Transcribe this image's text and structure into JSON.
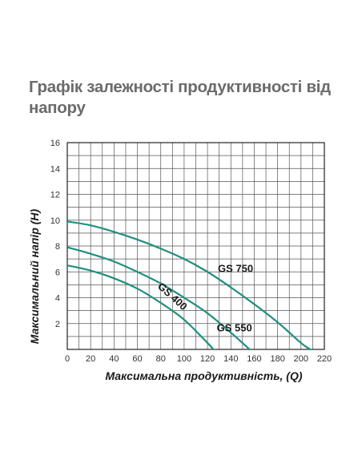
{
  "page": {
    "title": "Графік залежності продуктивності від напору"
  },
  "chart_data": {
    "type": "line",
    "title": "Графік залежності продуктивності від напору",
    "xlabel": "Максимальна продуктивність, (Q)",
    "ylabel": "Максимальний напір (H)",
    "xlim": [
      0,
      220
    ],
    "ylim": [
      0,
      16
    ],
    "xticks": [
      0,
      20,
      40,
      60,
      80,
      100,
      120,
      140,
      160,
      180,
      200,
      220
    ],
    "yticks": [
      2,
      4,
      6,
      8,
      10,
      12,
      14,
      16
    ],
    "grid": true,
    "legend": "none",
    "line_color": "#1f8f80",
    "series": [
      {
        "name": "GS 750",
        "x": [
          0,
          20,
          40,
          60,
          80,
          100,
          120,
          140,
          160,
          180,
          200,
          208
        ],
        "y": [
          9.9,
          9.6,
          9.1,
          8.5,
          7.8,
          7.0,
          6.0,
          4.8,
          3.5,
          2.1,
          0.5,
          0
        ]
      },
      {
        "name": "GS 550",
        "x": [
          0,
          20,
          40,
          60,
          80,
          100,
          120,
          140,
          156
        ],
        "y": [
          7.9,
          7.4,
          6.8,
          6.0,
          5.1,
          4.0,
          2.8,
          1.3,
          0
        ]
      },
      {
        "name": "GS 400",
        "x": [
          0,
          20,
          40,
          60,
          80,
          100,
          120,
          125
        ],
        "y": [
          6.5,
          6.1,
          5.5,
          4.7,
          3.6,
          2.3,
          0.5,
          0
        ]
      }
    ]
  }
}
